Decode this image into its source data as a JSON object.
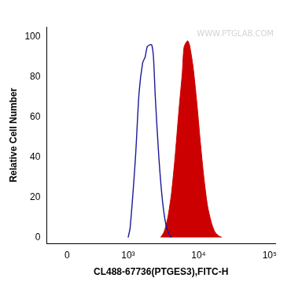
{
  "chart_data": {
    "type": "line",
    "x_label": "CL488-67736(PTGES3),FITC-H",
    "y_label": "Relative Cell Number",
    "annotations": [
      "WWW.PTGLAB.COM"
    ],
    "xlim": [
      -200,
      120000
    ],
    "xticks": [
      0,
      {
        "value": 1000,
        "label": "10³"
      },
      {
        "value": 10000,
        "label": "10⁴"
      },
      {
        "value": 100000,
        "label": "10⁵"
      }
    ],
    "ylim": [
      -3,
      105
    ],
    "yticks": [
      0,
      20,
      40,
      60,
      80,
      100
    ],
    "grid": false,
    "series": [
      {
        "type": "line",
        "color": "#1a1a99",
        "x": [
          1000,
          1070,
          1278,
          1438,
          1619,
          1760,
          1880,
          2050,
          2180,
          2306,
          2450,
          2750,
          3100,
          3480,
          3900,
          4146
        ],
        "values": [
          0,
          5,
          40,
          72,
          87,
          90,
          95,
          96,
          96,
          90,
          70,
          40,
          18,
          6,
          1,
          0
        ]
      },
      {
        "type": "area",
        "color": "#cc0000",
        "x": [
          2916,
          3280,
          3688,
          4146,
          4660,
          5240,
          5890,
          6250,
          7000,
          7440,
          8360,
          9390,
          10550,
          11850,
          13320,
          14960,
          16800,
          18890,
          21200
        ],
        "values": [
          0,
          3,
          10,
          22,
          40,
          62,
          82,
          95,
          98,
          96,
          85,
          68,
          48,
          30,
          16,
          8,
          3,
          1,
          0
        ]
      }
    ]
  }
}
